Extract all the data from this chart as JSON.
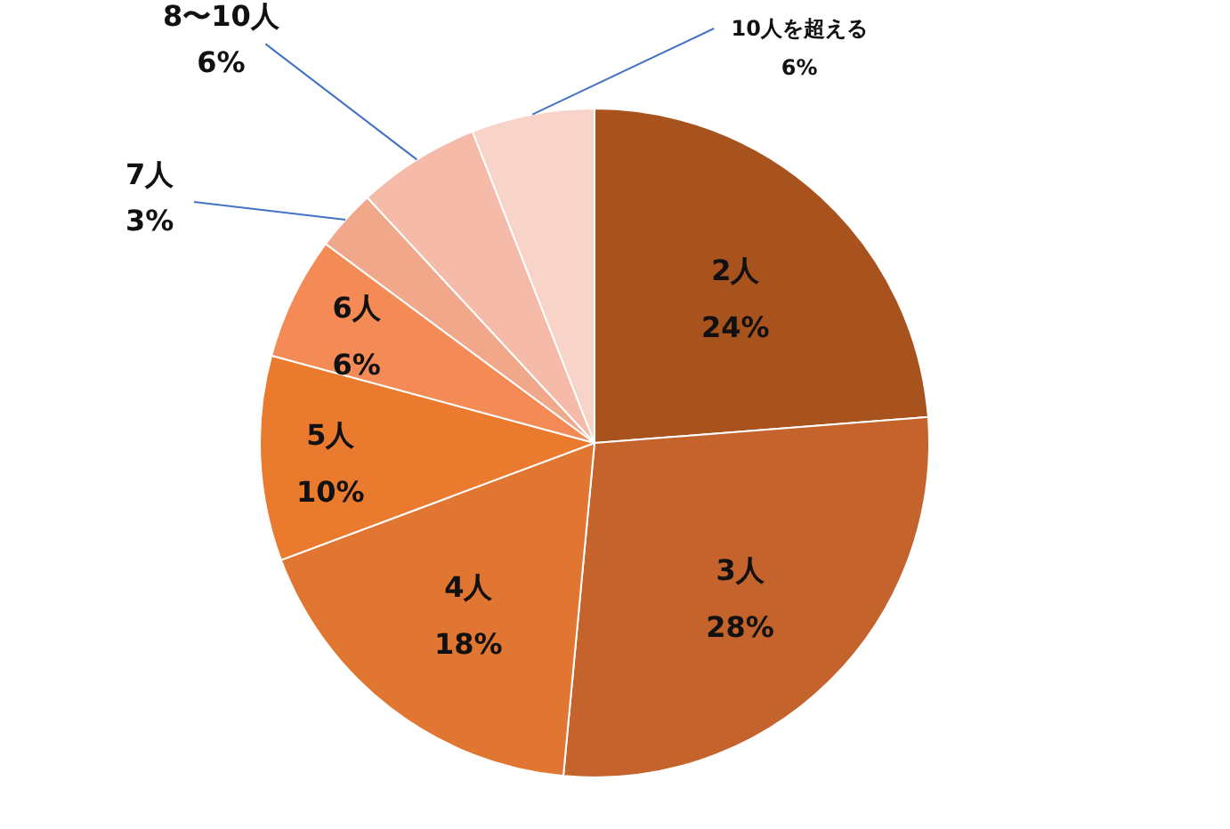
{
  "chart_data": {
    "type": "pie",
    "categories": [
      "2人",
      "3人",
      "4人",
      "5人",
      "6人",
      "7人",
      "8〜10人",
      "10人を超える"
    ],
    "values": [
      24,
      28,
      18,
      10,
      6,
      3,
      6,
      6
    ],
    "value_labels": [
      "24%",
      "28%",
      "18%",
      "10%",
      "6%",
      "3%",
      "6%",
      "6%"
    ],
    "colors": [
      "#a8521e",
      "#c4642c",
      "#e07632",
      "#ea7a2e",
      "#f48a55",
      "#f0a78a",
      "#f5bba8",
      "#f8d3c8"
    ],
    "legend": false
  }
}
